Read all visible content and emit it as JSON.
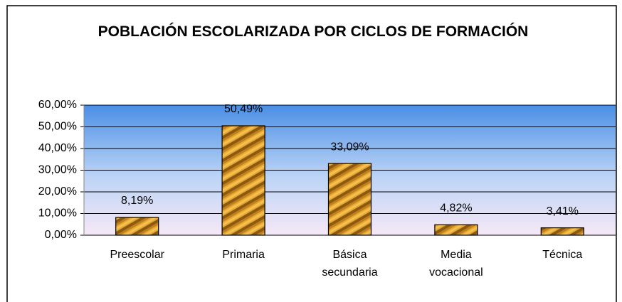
{
  "chart_data": {
    "type": "bar",
    "title": "POBLACIÓN ESCOLARIZADA POR CICLOS DE FORMACIÓN",
    "categories": [
      "Preescolar",
      "Primaria",
      "Básica secundaria",
      "Media vocacional",
      "Técnica"
    ],
    "values": [
      8.19,
      50.49,
      33.09,
      4.82,
      3.41
    ],
    "value_labels": [
      "8,19%",
      "50,49%",
      "33,09%",
      "4,82%",
      "3,41%"
    ],
    "color": "#d4901c",
    "ylim": [
      0,
      60
    ],
    "yticks": [
      {
        "value": 0,
        "label": "0,00%"
      },
      {
        "value": 10,
        "label": "10,00%"
      },
      {
        "value": 20,
        "label": "20,00%"
      },
      {
        "value": 30,
        "label": "30,00%"
      },
      {
        "value": 40,
        "label": "40,00%"
      },
      {
        "value": 50,
        "label": "50,00%"
      },
      {
        "value": 60,
        "label": "60,00%"
      }
    ],
    "grid": true
  }
}
